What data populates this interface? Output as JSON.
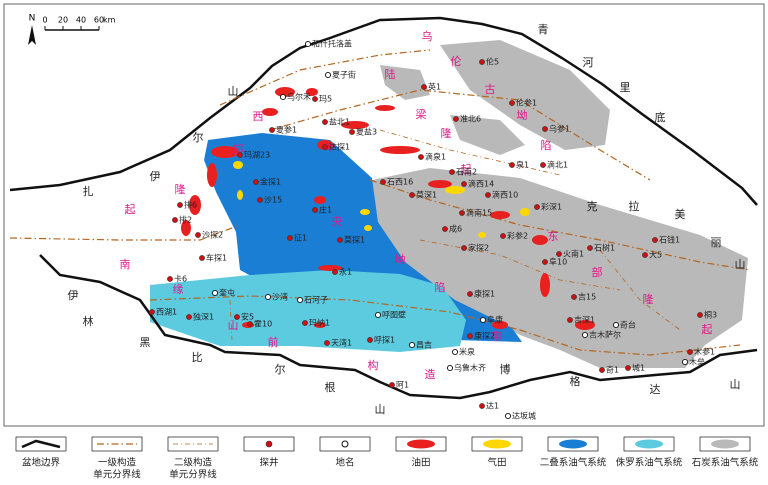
{
  "north": "N",
  "scale": {
    "ticks": [
      0,
      20,
      40,
      60
    ],
    "unit": "km"
  },
  "tectonic_units": [
    [
      "乌",
      "伦",
      "古",
      "坳",
      "陷"
    ],
    [
      "陆",
      "梁",
      "隆",
      "起"
    ],
    [
      "西",
      "部",
      "隆",
      "起"
    ],
    [
      "中",
      "央",
      "坳",
      "陷"
    ],
    [
      "东",
      "部",
      "隆",
      "起"
    ],
    [
      "南",
      "缘",
      "山",
      "前",
      "构",
      "造",
      "带"
    ]
  ],
  "mountains": [
    "青",
    "河",
    "里",
    "底",
    "克",
    "拉",
    "美",
    "丽",
    "山",
    "山",
    "尔",
    "扎",
    "伊",
    "伊",
    "林",
    "黑",
    "比",
    "尔",
    "根",
    "山",
    "博",
    "格",
    "达",
    "山"
  ],
  "wells": [
    "伦5",
    "伦参1",
    "乌参1",
    "英1",
    "准北6",
    "泉1",
    "滴北1",
    "滴泉1",
    "石南2",
    "石西16",
    "莫深1",
    "滴西14",
    "滴西10",
    "滴南15",
    "彩深1",
    "彩参2",
    "成6",
    "家探2",
    "阜10",
    "康探1",
    "吉15",
    "吉深1",
    "康探2",
    "石树1",
    "石钱1",
    "火南1",
    "大5",
    "桐3",
    "木参1",
    "奇1",
    "城1",
    "达1",
    "阿1",
    "呼探1",
    "天湾1",
    "玛纳1",
    "霍10",
    "安5",
    "独深1",
    "西湖1",
    "卡6",
    "车探1",
    "沙探2",
    "排2",
    "排6",
    "金探1",
    "沙15",
    "庄1",
    "征1",
    "莫探1",
    "永1",
    "玛湖23",
    "夏盐3",
    "盐北1",
    "达探1",
    "玛5",
    "夏参1"
  ],
  "places": [
    "和什托洛盖",
    "夏子街",
    "乌尔禾",
    "奎屯",
    "沙湾",
    "石河子",
    "呼图壁",
    "昌吉",
    "乌鲁木齐",
    "米泉",
    "阜康",
    "吉木萨尔",
    "奇台",
    "木垒",
    "达坂城"
  ],
  "legend": [
    [
      "盆地边界"
    ],
    [
      "一级构造",
      "单元分界线"
    ],
    [
      "二级构造",
      "单元分界线"
    ],
    [
      "探井"
    ],
    [
      "地名"
    ],
    [
      "油田"
    ],
    [
      "气田"
    ],
    [
      "二叠系油气系统"
    ],
    [
      "侏罗系油气系统"
    ],
    [
      "石炭系油气系统"
    ]
  ]
}
